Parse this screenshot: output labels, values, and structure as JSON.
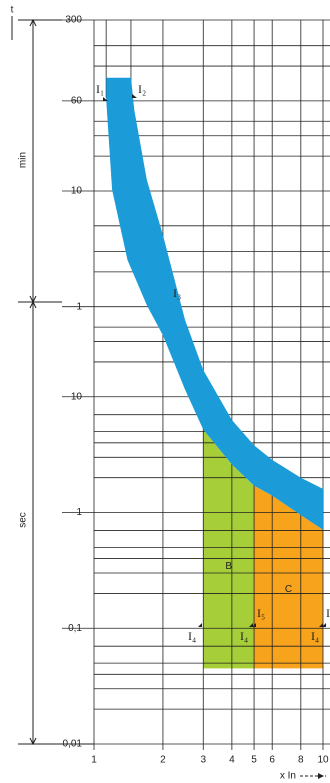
{
  "chart_data": {
    "type": "tripping-curve",
    "y_unit_labels": [
      "t",
      "min",
      "sec"
    ],
    "x_label": "x  In",
    "xlim": [
      1,
      10
    ],
    "xticks": [
      1,
      2,
      3,
      4,
      5,
      6,
      8,
      10
    ],
    "minor_xticks": [
      1.13,
      1.45
    ],
    "log_x": true,
    "log_y": true,
    "ylim": [
      0.01,
      18000
    ],
    "yticks": [
      {
        "value": 18000,
        "label": "300"
      },
      {
        "value": 3600,
        "label": "60"
      },
      {
        "value": 600,
        "label": "10"
      },
      {
        "value": 60,
        "label": "1"
      },
      10,
      1,
      {
        "value": 0.1,
        "label": "0,1"
      },
      {
        "value": 0.01,
        "label": "0,01"
      }
    ],
    "minor_yticks": [
      0.02,
      0.03,
      0.04,
      0.05,
      0.07,
      0.2,
      0.3,
      0.4,
      0.5,
      0.7,
      2,
      3,
      4,
      5,
      7,
      20,
      30,
      40,
      120,
      180,
      300,
      1200,
      1800,
      2400,
      7200,
      10800
    ],
    "grid": true,
    "band": {
      "color": "#1b9bd7",
      "upper": {
        "x": [
          1.13,
          1.45,
          1.5,
          1.7,
          2,
          2.5,
          3,
          4,
          5,
          6,
          8,
          10
        ],
        "values": [
          5700,
          5700,
          3000,
          750,
          250,
          46,
          17,
          6.3,
          3.8,
          2.85,
          2.0,
          1.6
        ]
      },
      "lower": {
        "x": [
          1.13,
          1.13,
          1.2,
          1.4,
          1.7,
          2,
          2.5,
          3,
          4,
          5,
          6,
          8,
          10
        ],
        "values": [
          5700,
          3680,
          614,
          152,
          62,
          34,
          11.5,
          5.2,
          2.6,
          1.7,
          1.4,
          0.95,
          0.71
        ]
      }
    },
    "zones": [
      {
        "name": "B",
        "color": "#a6ce39",
        "xlim": [
          3,
          5
        ],
        "bottom": 0.045
      },
      {
        "name": "C",
        "color": "#f7a31c",
        "xlim": [
          5,
          10
        ],
        "bottom": 0.045
      }
    ],
    "annotations": [
      "I₁",
      "I₂",
      "I₃",
      "I₄",
      "I₄",
      "I₅",
      "I₄",
      "I"
    ]
  }
}
